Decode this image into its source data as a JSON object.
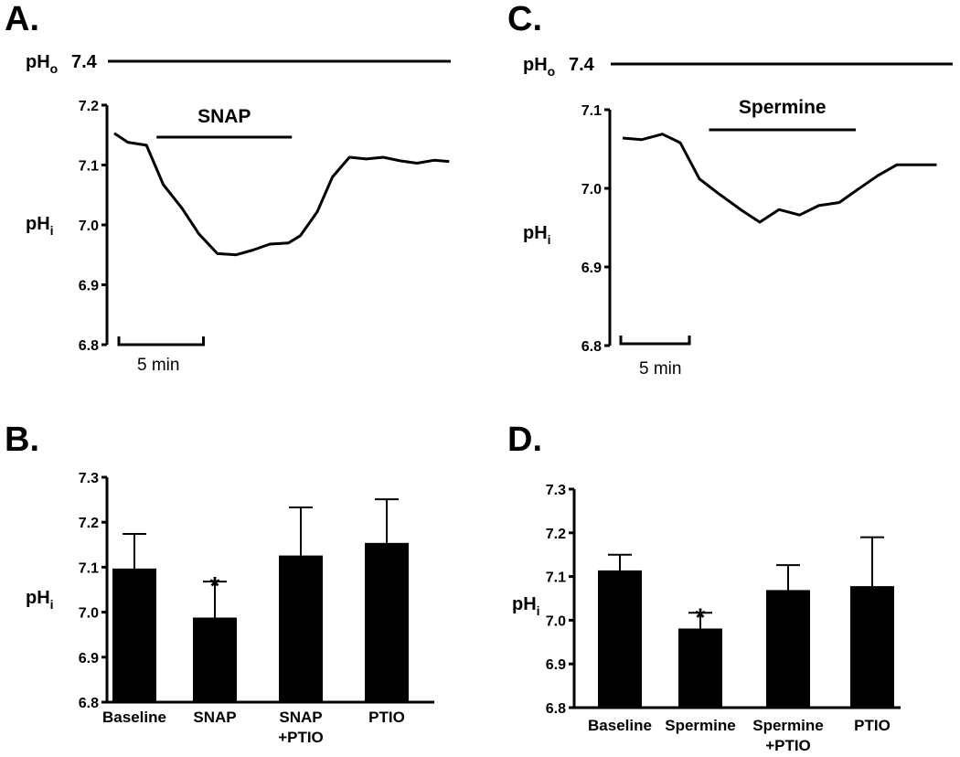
{
  "chart_data": [
    {
      "panel": "A.",
      "type": "line",
      "ylabel_main": "pH",
      "ylabel_sub": "i",
      "ylim": [
        6.8,
        7.2
      ],
      "yticks": [
        6.8,
        6.9,
        7.0,
        7.1,
        7.2
      ],
      "ytick_labels": [
        "6.8",
        "6.9",
        "7.0",
        "7.1",
        "7.2"
      ],
      "pho_main": "pH",
      "pho_sub": "o",
      "pho_value": "7.4",
      "treatment_label": "SNAP",
      "treatment_minutes": [
        2.5,
        10.5
      ],
      "scale_bar_label": "5 min",
      "scale_bar_minutes": 5,
      "x_minutes": [
        0,
        0.8,
        1.9,
        2.9,
        4.0,
        5.0,
        6.1,
        7.2,
        8.2,
        9.2,
        10.3,
        11.0,
        12.0,
        12.9,
        13.9,
        14.9,
        15.9,
        16.9,
        17.9,
        18.9,
        19.8
      ],
      "y": [
        7.153,
        7.138,
        7.133,
        7.067,
        7.028,
        6.985,
        6.952,
        6.95,
        6.958,
        6.968,
        6.97,
        6.982,
        7.022,
        7.08,
        7.113,
        7.11,
        7.113,
        7.107,
        7.103,
        7.108,
        7.106
      ]
    },
    {
      "panel": "C.",
      "type": "line",
      "ylabel_main": "pH",
      "ylabel_sub": "i",
      "ylim": [
        6.8,
        7.1
      ],
      "yticks": [
        6.8,
        6.9,
        7.0,
        7.1
      ],
      "ytick_labels": [
        "6.8",
        "6.9",
        "7.0",
        "7.1"
      ],
      "pho_main": "pH",
      "pho_sub": "o",
      "pho_value": "7.4",
      "treatment_label": "Spermine",
      "treatment_minutes": [
        6.3,
        17.0
      ],
      "scale_bar_label": "5 min",
      "scale_bar_minutes": 5,
      "x_minutes": [
        0,
        1.4,
        2.9,
        4.2,
        5.6,
        7.1,
        8.6,
        10.0,
        11.4,
        12.9,
        14.3,
        15.8,
        17.1,
        18.6,
        20.0,
        21.4,
        22.9
      ],
      "y": [
        7.064,
        7.062,
        7.069,
        7.058,
        7.012,
        6.992,
        6.973,
        6.957,
        6.973,
        6.966,
        6.978,
        6.982,
        6.998,
        7.016,
        7.03,
        7.03,
        7.03
      ]
    },
    {
      "panel": "B.",
      "type": "bar",
      "ylabel_main": "pH",
      "ylabel_sub": "i",
      "ylim": [
        6.8,
        7.3
      ],
      "yticks": [
        6.8,
        6.9,
        7.0,
        7.1,
        7.2,
        7.3
      ],
      "ytick_labels": [
        "6.8",
        "6.9",
        "7.0",
        "7.1",
        "7.2",
        "7.3"
      ],
      "categories": [
        [
          "Baseline"
        ],
        [
          "SNAP"
        ],
        [
          "SNAP",
          "+PTIO"
        ],
        [
          "PTIO"
        ]
      ],
      "values": [
        7.097,
        6.988,
        7.126,
        7.154
      ],
      "errors": [
        0.077,
        0.08,
        0.107,
        0.097
      ],
      "significance": [
        "",
        "*",
        "",
        ""
      ]
    },
    {
      "panel": "D.",
      "type": "bar",
      "ylabel_main": "pH",
      "ylabel_sub": "i",
      "ylim": [
        6.8,
        7.3
      ],
      "yticks": [
        6.8,
        6.9,
        7.0,
        7.1,
        7.2,
        7.3
      ],
      "ytick_labels": [
        "6.8",
        "6.9",
        "7.0",
        "7.1",
        "7.2",
        "7.3"
      ],
      "categories": [
        [
          "Baseline"
        ],
        [
          "Spermine"
        ],
        [
          "Spermine",
          "+PTIO"
        ],
        [
          "PTIO"
        ]
      ],
      "values": [
        7.114,
        6.981,
        7.069,
        7.078
      ],
      "errors": [
        0.036,
        0.036,
        0.057,
        0.112
      ],
      "significance": [
        "",
        "*",
        "",
        ""
      ]
    }
  ]
}
